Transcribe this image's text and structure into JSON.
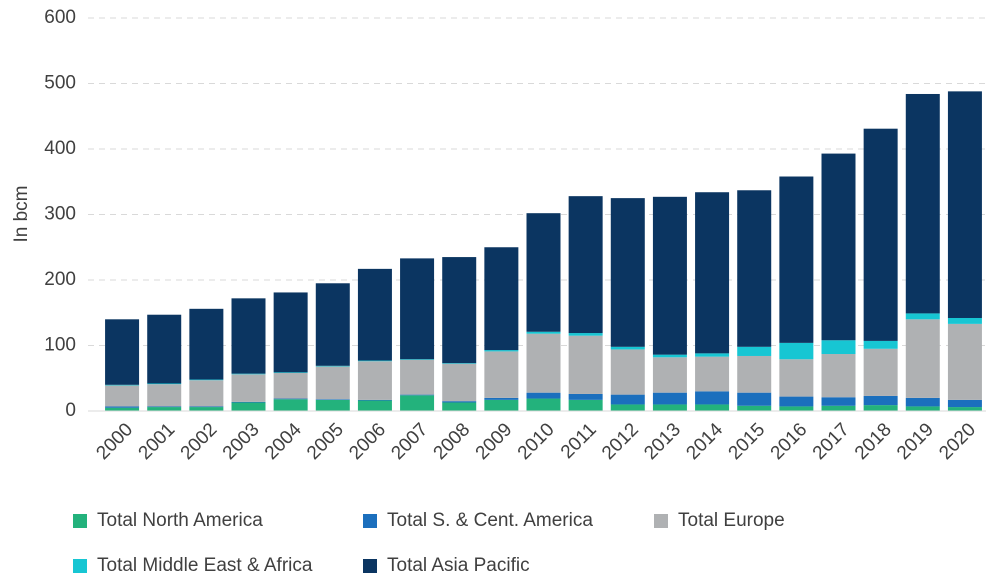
{
  "chart_data": {
    "type": "stacked_bar",
    "y_label": "In bcm",
    "categories": [
      "2000",
      "2001",
      "2002",
      "2003",
      "2004",
      "2005",
      "2006",
      "2007",
      "2008",
      "2009",
      "2010",
      "2011",
      "2012",
      "2013",
      "2014",
      "2015",
      "2016",
      "2017",
      "2018",
      "2019",
      "2020"
    ],
    "series": [
      {
        "name": "Total North America",
        "color": "#23b27c",
        "values": [
          5,
          6,
          6,
          13,
          18,
          17,
          16,
          24,
          13,
          17,
          19,
          17,
          10,
          10,
          10,
          8,
          7,
          8,
          9,
          7,
          6
        ]
      },
      {
        "name": "Total S. & Cent. America",
        "color": "#1b6fbd",
        "values": [
          2,
          1,
          1,
          1,
          1,
          1,
          1,
          1,
          2,
          3,
          9,
          9,
          15,
          18,
          20,
          20,
          15,
          13,
          14,
          13,
          11
        ]
      },
      {
        "name": "Total Europe",
        "color": "#afb1b3",
        "values": [
          32,
          34,
          40,
          42,
          39,
          50,
          59,
          53,
          57,
          71,
          90,
          89,
          69,
          54,
          53,
          56,
          57,
          66,
          72,
          120,
          116
        ]
      },
      {
        "name": "Total Middle East & Africa",
        "color": "#17c6d3",
        "values": [
          1,
          1,
          1,
          1,
          1,
          1,
          1,
          1,
          1,
          2,
          3,
          4,
          4,
          4,
          5,
          14,
          25,
          21,
          12,
          9,
          9
        ]
      },
      {
        "name": "Total Asia Pacific",
        "color": "#0b3561",
        "values": [
          100,
          105,
          108,
          115,
          122,
          126,
          140,
          154,
          162,
          157,
          181,
          209,
          227,
          241,
          246,
          239,
          254,
          285,
          324,
          335,
          346
        ]
      }
    ],
    "ylim": [
      0,
      600
    ],
    "yticks": [
      0,
      100,
      200,
      300,
      400,
      500,
      600
    ],
    "grid": true
  }
}
